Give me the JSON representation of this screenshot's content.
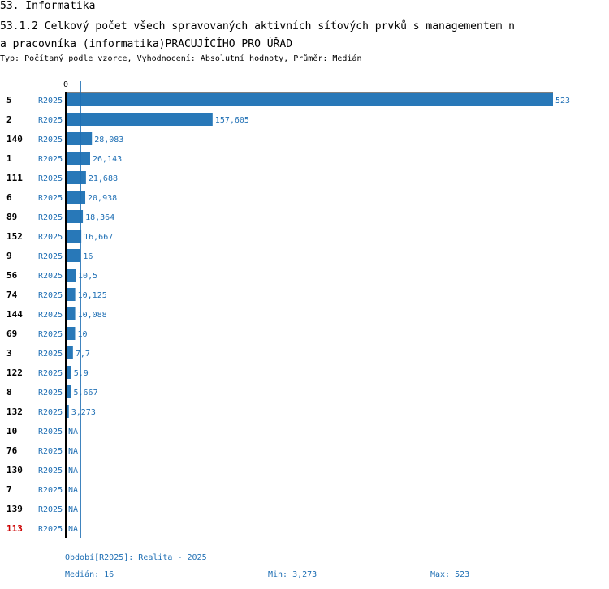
{
  "header": {
    "section": "53. Informatika",
    "title_line1": "53.1.2 Celkový počet všech spravovaných aktivních síťových prvků s managementem n",
    "title_line2": "a pracovníka (informatika)PRACUJÍCÍHO PRO ÚŘAD",
    "subtitle": "Typ: Počítaný podle vzorce, Vyhodnocení: Absolutní hodnoty, Průměr: Medián"
  },
  "colors": {
    "bar": "#2878b8",
    "label": "#1f6fb4",
    "axis": "#000000",
    "highlight": "#cc0000"
  },
  "chart_data": {
    "type": "bar",
    "orientation": "horizontal",
    "axis_zero_label": "0",
    "xlim": [
      0,
      523
    ],
    "median": 16,
    "categories": [
      "5",
      "2",
      "140",
      "1",
      "111",
      "6",
      "89",
      "152",
      "9",
      "56",
      "74",
      "144",
      "69",
      "3",
      "122",
      "8",
      "132",
      "10",
      "76",
      "130",
      "7",
      "139",
      "113"
    ],
    "period": "R2025",
    "values": [
      523,
      157.605,
      28.083,
      26.143,
      21.688,
      20.938,
      18.364,
      16.667,
      16,
      10.5,
      10.125,
      10.088,
      10,
      7.7,
      5.9,
      5.667,
      3.273,
      null,
      null,
      null,
      null,
      null,
      null
    ],
    "value_labels": [
      "523",
      "157,605",
      "28,083",
      "26,143",
      "21,688",
      "20,938",
      "18,364",
      "16,667",
      "16",
      "10,5",
      "10,125",
      "10,088",
      "10",
      "7,7",
      "5,9",
      "5,667",
      "3,273",
      "NA",
      "NA",
      "NA",
      "NA",
      "NA",
      "NA"
    ],
    "highlight_category": "113"
  },
  "footer": {
    "period_legend": "Období[R2025]: Realita - 2025",
    "median_label": "Medián: 16",
    "min_label": "Min: 3,273",
    "max_label": "Max: 523"
  }
}
